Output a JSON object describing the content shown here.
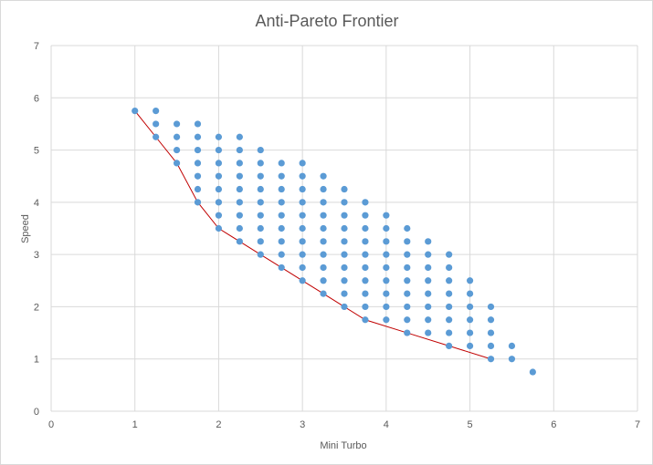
{
  "chart_data": {
    "type": "scatter",
    "title": "Anti-Pareto Frontier",
    "xlabel": "Mini Turbo",
    "ylabel": "Speed",
    "xlim": [
      0,
      7
    ],
    "ylim": [
      0,
      7
    ],
    "xticks": [
      "0",
      "1",
      "2",
      "3",
      "4",
      "5",
      "6",
      "7"
    ],
    "yticks": [
      "0",
      "1",
      "2",
      "3",
      "4",
      "5",
      "6",
      "7"
    ],
    "grid": true,
    "legend": "none",
    "colors": {
      "points": "#5b9bd5",
      "frontier": "#c00000",
      "grid": "#d9d9d9",
      "text": "#595959"
    },
    "frontier": {
      "x": [
        1,
        1.25,
        1.5,
        1.75,
        2,
        2.25,
        2.5,
        2.75,
        3,
        3.25,
        3.5,
        3.75,
        4.25,
        4.75,
        5.25
      ],
      "y": [
        5.75,
        5.25,
        4.75,
        4,
        3.5,
        3.25,
        3,
        2.75,
        2.5,
        2.25,
        2,
        1.75,
        1.5,
        1.25,
        1
      ]
    },
    "columns": [
      {
        "x": 1,
        "y_min": 5.75,
        "y_max": 5.75
      },
      {
        "x": 1.25,
        "y_min": 5.25,
        "y_max": 5.75
      },
      {
        "x": 1.5,
        "y_min": 4.75,
        "y_max": 5.5
      },
      {
        "x": 1.75,
        "y_min": 4,
        "y_max": 5.5
      },
      {
        "x": 2,
        "y_min": 3.5,
        "y_max": 5.25
      },
      {
        "x": 2.25,
        "y_min": 3.25,
        "y_max": 5.25
      },
      {
        "x": 2.5,
        "y_min": 3,
        "y_max": 5
      },
      {
        "x": 2.75,
        "y_min": 2.75,
        "y_max": 4.75
      },
      {
        "x": 3,
        "y_min": 2.5,
        "y_max": 4.75
      },
      {
        "x": 3.25,
        "y_min": 2.25,
        "y_max": 4.5
      },
      {
        "x": 3.5,
        "y_min": 2,
        "y_max": 4.25
      },
      {
        "x": 3.75,
        "y_min": 1.75,
        "y_max": 4
      },
      {
        "x": 4,
        "y_min": 1.75,
        "y_max": 3.75
      },
      {
        "x": 4.25,
        "y_min": 1.5,
        "y_max": 3.5
      },
      {
        "x": 4.5,
        "y_min": 1.5,
        "y_max": 3.25
      },
      {
        "x": 4.75,
        "y_min": 1.25,
        "y_max": 3
      },
      {
        "x": 5,
        "y_min": 1.25,
        "y_max": 2.5
      },
      {
        "x": 5.25,
        "y_min": 1,
        "y_max": 2
      },
      {
        "x": 5.5,
        "y_min": 1,
        "y_max": 1.25
      },
      {
        "x": 5.75,
        "y_min": 0.75,
        "y_max": 0.75
      }
    ],
    "step": 0.25
  }
}
